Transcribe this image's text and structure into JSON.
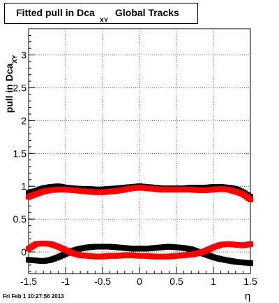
{
  "title": {
    "main": "Fitted pull in Dca",
    "subscript": "XY",
    "rest": "Global Tracks"
  },
  "timestamp": "Fri Feb  1 10:27:56 2013",
  "chart_data": {
    "type": "scatter",
    "title": "Fitted pull in Dca XY Global Tracks",
    "xlabel": "η",
    "ylabel": "pull in Dca",
    "ylabel_subscript": "XY",
    "xlim": [
      -1.5,
      1.5
    ],
    "ylim": [
      -0.33,
      3.4
    ],
    "grid": true,
    "x_ticks": [
      "-1.5",
      "-1",
      "-0.5",
      "0",
      "0.5",
      "1",
      "1.5"
    ],
    "y_ticks": [
      "0",
      "0.5",
      "1",
      "1.5",
      "2",
      "2.5",
      "3"
    ],
    "x": [
      -1.5,
      -1.4,
      -1.3,
      -1.2,
      -1.1,
      -1.0,
      -0.9,
      -0.8,
      -0.7,
      -0.6,
      -0.5,
      -0.4,
      -0.3,
      -0.2,
      -0.1,
      0.0,
      0.1,
      0.2,
      0.3,
      0.4,
      0.5,
      0.6,
      0.7,
      0.8,
      0.9,
      1.0,
      1.1,
      1.2,
      1.3,
      1.4,
      1.5
    ],
    "series": [
      {
        "color": "#000000",
        "values": [
          0.9,
          0.93,
          0.97,
          0.99,
          1.0,
          0.98,
          0.97,
          0.96,
          0.96,
          0.95,
          0.95,
          0.96,
          0.97,
          0.98,
          0.99,
          1.0,
          0.99,
          0.98,
          0.97,
          0.97,
          0.97,
          0.97,
          0.98,
          0.98,
          0.98,
          0.99,
          0.99,
          0.98,
          0.96,
          0.91,
          0.84
        ]
      },
      {
        "color": "#ff0000",
        "values": [
          0.84,
          0.88,
          0.92,
          0.94,
          0.95,
          0.95,
          0.94,
          0.93,
          0.92,
          0.91,
          0.91,
          0.92,
          0.93,
          0.95,
          0.97,
          0.98,
          0.97,
          0.96,
          0.95,
          0.95,
          0.95,
          0.95,
          0.95,
          0.94,
          0.94,
          0.95,
          0.96,
          0.95,
          0.92,
          0.88,
          0.8
        ]
      },
      {
        "color": "#000000",
        "values": [
          -0.12,
          -0.13,
          -0.14,
          -0.12,
          -0.08,
          -0.03,
          0.02,
          0.05,
          0.07,
          0.08,
          0.08,
          0.08,
          0.07,
          0.06,
          0.05,
          0.05,
          0.05,
          0.06,
          0.07,
          0.08,
          0.07,
          0.06,
          0.04,
          0.0,
          -0.04,
          -0.08,
          -0.11,
          -0.13,
          -0.15,
          -0.16,
          -0.17
        ]
      },
      {
        "color": "#ff0000",
        "values": [
          0.05,
          0.12,
          0.13,
          0.12,
          0.08,
          0.03,
          -0.02,
          -0.05,
          -0.06,
          -0.07,
          -0.07,
          -0.06,
          -0.06,
          -0.05,
          -0.05,
          -0.06,
          -0.06,
          -0.07,
          -0.07,
          -0.07,
          -0.06,
          -0.05,
          -0.04,
          -0.02,
          0.02,
          0.07,
          0.11,
          0.12,
          0.11,
          0.1,
          0.12
        ]
      }
    ]
  }
}
